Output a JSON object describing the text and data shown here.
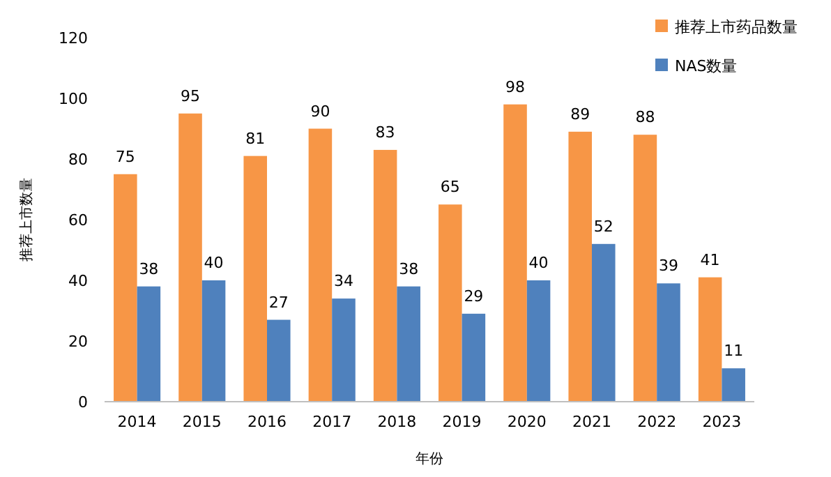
{
  "chart_data": {
    "type": "bar",
    "xlabel": "年份",
    "ylabel": "推荐上市数量",
    "categories": [
      "2014",
      "2015",
      "2016",
      "2017",
      "2018",
      "2019",
      "2020",
      "2021",
      "2022",
      "2023"
    ],
    "series": [
      {
        "name": "推荐上市药品数量",
        "color": "#f79646",
        "values": [
          75,
          95,
          81,
          90,
          83,
          65,
          98,
          89,
          88,
          41
        ]
      },
      {
        "name": "NAS数量",
        "color": "#4f81bd",
        "values": [
          38,
          40,
          27,
          34,
          38,
          29,
          40,
          52,
          39,
          11
        ]
      }
    ],
    "ylim": [
      0,
      120
    ],
    "yticks": [
      0,
      20,
      40,
      60,
      80,
      100,
      120
    ],
    "grid": false,
    "legend": "top right",
    "data_labels": true
  }
}
